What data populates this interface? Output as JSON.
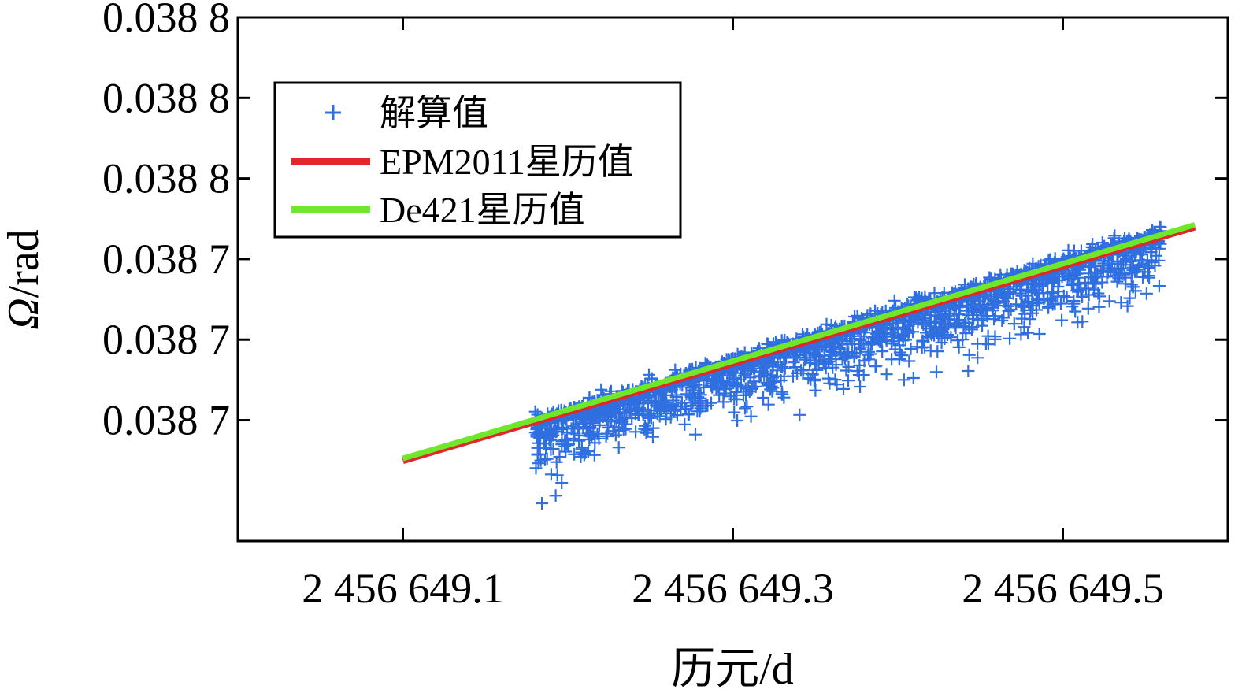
{
  "chart_data": {
    "type": "scatter",
    "title": "",
    "xlabel": "历元/d",
    "ylabel_symbol": "Ω",
    "ylabel_unit": "/rad",
    "xlim": [
      2456649.0,
      2456649.6
    ],
    "ylim": [
      0.03868,
      0.03881
    ],
    "x_ticks": [
      {
        "value": 2456649.1,
        "label": "2 456 649.1"
      },
      {
        "value": 2456649.3,
        "label": "2 456 649.3"
      },
      {
        "value": 2456649.5,
        "label": "2 456 649.5"
      }
    ],
    "y_ticks": [
      {
        "value": 0.03871,
        "label": "0.038 7"
      },
      {
        "value": 0.03873,
        "label": "0.038 7"
      },
      {
        "value": 0.03875,
        "label": "0.038 7"
      },
      {
        "value": 0.03877,
        "label": "0.038 8"
      },
      {
        "value": 0.03879,
        "label": "0.038 8"
      },
      {
        "value": 0.03881,
        "label": "0.038 8"
      }
    ],
    "grid": false,
    "legend_position": "top-left",
    "series": [
      {
        "name": "解算值",
        "kind": "scatter",
        "marker": "+",
        "color": "#2f6fe0",
        "x_range": [
          2456649.18,
          2456649.56
        ],
        "trend": {
          "x0": 2456649.18,
          "y0": 0.038708,
          "x1": 2456649.56,
          "y1": 0.038755
        },
        "spread_below": 5.5e-06,
        "spread_above": 1.5e-06,
        "count": 2200
      },
      {
        "name": "EPM2011星历值",
        "kind": "line",
        "color": "#e3262a",
        "x": [
          2456649.1,
          2456649.58
        ],
        "y": [
          0.0387,
          0.038758
        ]
      },
      {
        "name": "De421星历值",
        "kind": "line",
        "color": "#6ee82a",
        "x": [
          2456649.1,
          2456649.58
        ],
        "y": [
          0.0387005,
          0.0387585
        ]
      }
    ]
  }
}
